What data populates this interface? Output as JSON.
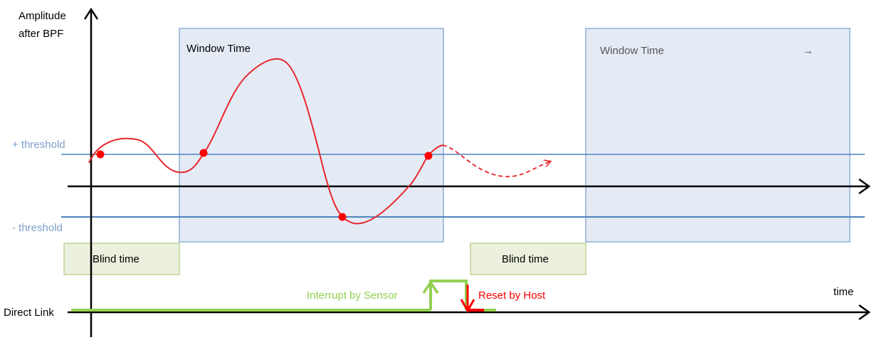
{
  "yaxis_label_line1": "Amplitude",
  "yaxis_label_line2": "after BPF",
  "xaxis_label": "time",
  "plus_threshold_label": "+ threshold",
  "minus_threshold_label": "- threshold",
  "direct_link_label": "Direct Link",
  "window1_label": "Window Time",
  "window2_label": "Window Time",
  "window2_arrow": "→",
  "blind1_label": "Blind time",
  "blind2_label": "Blind time",
  "interrupt_label": "Interrupt by Sensor",
  "reset_label": "Reset by Host",
  "colors": {
    "axis": "#000000",
    "threshold": "#4f81bd",
    "threshold_text": "#7f9fc8",
    "window_fill": "#dbe4f1",
    "window_stroke": "#95b3d7",
    "blind_fill": "#ebf1de",
    "blind_stroke": "#c3d69b",
    "signal": "#e8262b",
    "crossing_dot": "#ff0000",
    "link_green": "#92d050",
    "reset_red": "#ff0000"
  }
}
